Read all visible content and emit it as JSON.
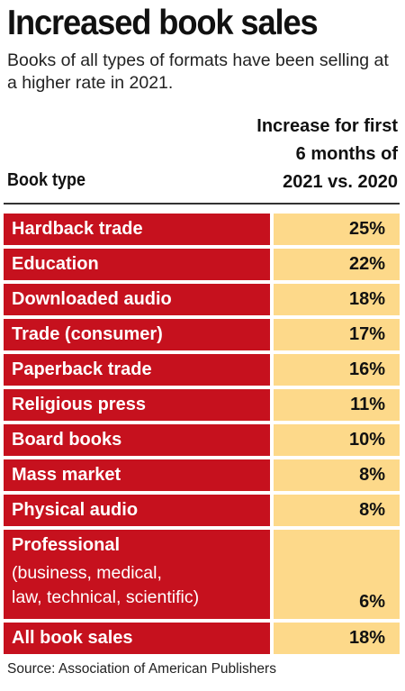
{
  "title": "Increased book sales",
  "subtitle": "Books of all types of formats have been selling at a higher rate in 2021.",
  "header": {
    "left": "Book type",
    "right_lines": [
      "Increase for first",
      "6 months of",
      "2021 vs. 2020"
    ]
  },
  "source": "Source: Association of American Publishers",
  "colors": {
    "label_bg": "#c6111e",
    "value_bg": "#fdd98a",
    "label_text": "#ffffff"
  },
  "chart_data": {
    "type": "table",
    "columns": [
      "Book type",
      "Increase for first 6 months of 2021 vs. 2020"
    ],
    "rows": [
      {
        "label": "Hardback trade",
        "value": "25%"
      },
      {
        "label": "Education",
        "value": "22%"
      },
      {
        "label": "Downloaded audio",
        "value": "18%"
      },
      {
        "label": "Trade (consumer)",
        "value": "17%"
      },
      {
        "label": "Paperback trade",
        "value": "16%"
      },
      {
        "label": "Religious press",
        "value": "11%"
      },
      {
        "label": "Board books",
        "value": "10%"
      },
      {
        "label": "Mass market",
        "value": "8%"
      },
      {
        "label": "Physical audio",
        "value": "8%"
      },
      {
        "label": "Professional",
        "sublines": [
          "(business, medical,",
          "law, technical, scientific)"
        ],
        "value": "6%"
      },
      {
        "label": "All book sales",
        "value": "18%"
      }
    ]
  }
}
